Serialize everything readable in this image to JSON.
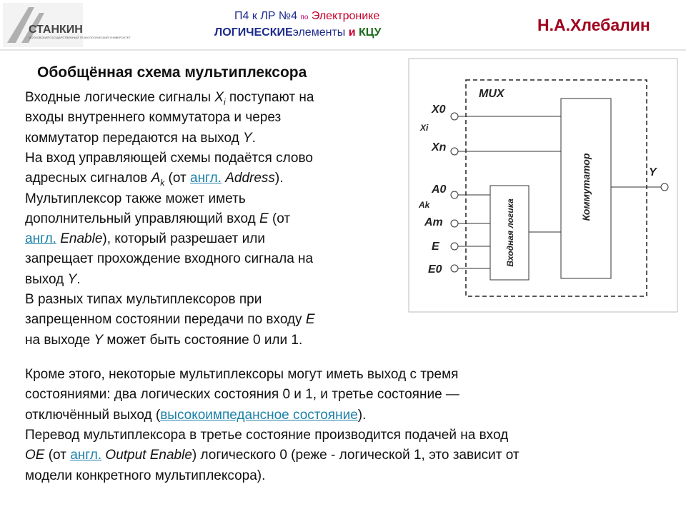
{
  "header": {
    "logo": "СТАНКИН",
    "logo_subtitle": "МОСКОВСКИЙ ГОСУДАРСТВЕННЫЙ ТЕХНОЛОГИЧЕСКИЙ УНИВЕРСИТЕТ",
    "course_line1": [
      "П4 к ЛР №4",
      "по",
      "Электронике"
    ],
    "course_line2": [
      "ЛОГИЧЕСКИЕ",
      "элементы",
      "и",
      "КЦУ"
    ],
    "author": "Н.А.Хлебалин"
  },
  "title": "Обобщённая схема мультиплексора",
  "left_text": [
    [
      "Входные логические сигналы ",
      {
        "i": "X"
      },
      {
        "sub": "i"
      },
      " поступают на"
    ],
    [
      "входы внутреннего коммутатора и через"
    ],
    [
      "коммутатор передаются на выход ",
      {
        "i": "Y"
      },
      "."
    ],
    [
      "На вход управляющей схемы подаётся слово"
    ],
    [
      "адресных сигналов ",
      {
        "i": "A"
      },
      {
        "sub": "k"
      },
      " (от ",
      {
        "link": "англ."
      },
      " ",
      {
        "i": "Address"
      },
      ")."
    ],
    [
      "Мультиплексор также может иметь"
    ],
    [
      "дополнительный управляющий вход ",
      {
        "i": "E"
      },
      " (от"
    ],
    [
      {
        "link": "англ."
      },
      " ",
      {
        "i": "Enable"
      },
      "), который разрешает или"
    ],
    [
      "запрещает прохождение входного сигнала на"
    ],
    [
      "выход ",
      {
        "i": "Y"
      },
      "."
    ],
    [
      "В разных типах мультиплексоров при"
    ],
    [
      "запрещенном состоянии передачи по входу ",
      {
        "i": "E"
      }
    ],
    [
      "на выходе ",
      {
        "i": "Y"
      },
      " может быть состояние 0 или 1."
    ]
  ],
  "bottom_text": [
    [
      "Кроме этого, некоторые мультиплексоры могут иметь выход с тремя"
    ],
    [
      "состояниями: два логических состояния 0 и 1, и третье состояние —"
    ],
    [
      "отключённый выход (",
      {
        "link": "высокоимпедансное состояние"
      },
      ")."
    ],
    [
      "Перевод мультиплексора в третье состояние производится подачей на вход"
    ],
    [
      {
        "i": "OE"
      },
      " (от ",
      {
        "link": "англ."
      },
      " ",
      {
        "i": "Output Enable"
      },
      ") логического 0 (реже - логической 1, это зависит от"
    ],
    [
      "модели конкретного мультиплексора)."
    ]
  ],
  "diagram": {
    "mux": "MUX",
    "inputs": [
      "X0",
      "Xi",
      "Xn",
      "A0",
      "Ak",
      "Am",
      "E",
      "E0"
    ],
    "output": "Y",
    "logic_block": "Входная логика",
    "switch_block": "Коммутатор"
  }
}
